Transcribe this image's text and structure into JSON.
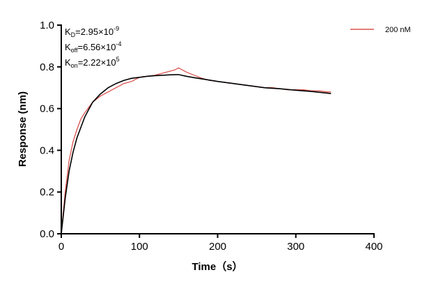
{
  "chart_data": {
    "type": "line",
    "xlabel": "Time（s）",
    "ylabel": "Response (nm)",
    "xlim": [
      0,
      400
    ],
    "ylim": [
      0,
      1
    ],
    "xticks": [
      0,
      100,
      200,
      300,
      400
    ],
    "yticks": [
      {
        "value": 0,
        "label": "0.0"
      },
      0.2,
      0.4,
      0.6,
      0.8,
      {
        "value": 1,
        "label": "1.0"
      }
    ],
    "legend": "top-right",
    "annotations": [
      {
        "main": "K",
        "sub": "D",
        "text": "=2.95×10",
        "sup": "-9"
      },
      {
        "main": "K",
        "sub": "off",
        "text": "=6.56×10",
        "sup": "-4"
      },
      {
        "main": "K",
        "sub": "on",
        "text": "=2.22×10",
        "sup": "5"
      }
    ],
    "series": [
      {
        "name": "200 nM",
        "color": "#d9534f",
        "x": [
          0,
          5,
          10,
          15,
          20,
          25,
          30,
          40,
          50,
          60,
          70,
          80,
          90,
          100,
          110,
          120,
          130,
          140,
          145,
          150,
          155,
          160,
          170,
          180,
          190,
          200,
          210,
          220,
          230,
          240,
          250,
          260,
          270,
          280,
          290,
          300,
          310,
          320,
          330,
          340,
          345
        ],
        "values": [
          0,
          0.2,
          0.35,
          0.44,
          0.5,
          0.55,
          0.58,
          0.63,
          0.66,
          0.68,
          0.7,
          0.72,
          0.73,
          0.75,
          0.755,
          0.76,
          0.77,
          0.78,
          0.785,
          0.795,
          0.785,
          0.775,
          0.76,
          0.745,
          0.735,
          0.73,
          0.725,
          0.72,
          0.715,
          0.71,
          0.705,
          0.7,
          0.7,
          0.695,
          0.69,
          0.69,
          0.69,
          0.685,
          0.685,
          0.68,
          0.68
        ]
      },
      {
        "color": "#000000",
        "x": [
          0,
          5,
          10,
          15,
          20,
          30,
          40,
          50,
          60,
          70,
          80,
          90,
          100,
          110,
          120,
          130,
          140,
          150,
          160,
          170,
          180,
          200,
          220,
          240,
          260,
          280,
          300,
          320,
          345
        ],
        "values": [
          0,
          0.17,
          0.3,
          0.39,
          0.46,
          0.56,
          0.63,
          0.67,
          0.7,
          0.72,
          0.735,
          0.745,
          0.75,
          0.755,
          0.758,
          0.76,
          0.762,
          0.763,
          0.755,
          0.748,
          0.742,
          0.73,
          0.72,
          0.71,
          0.7,
          0.695,
          0.688,
          0.682,
          0.672
        ]
      }
    ]
  }
}
